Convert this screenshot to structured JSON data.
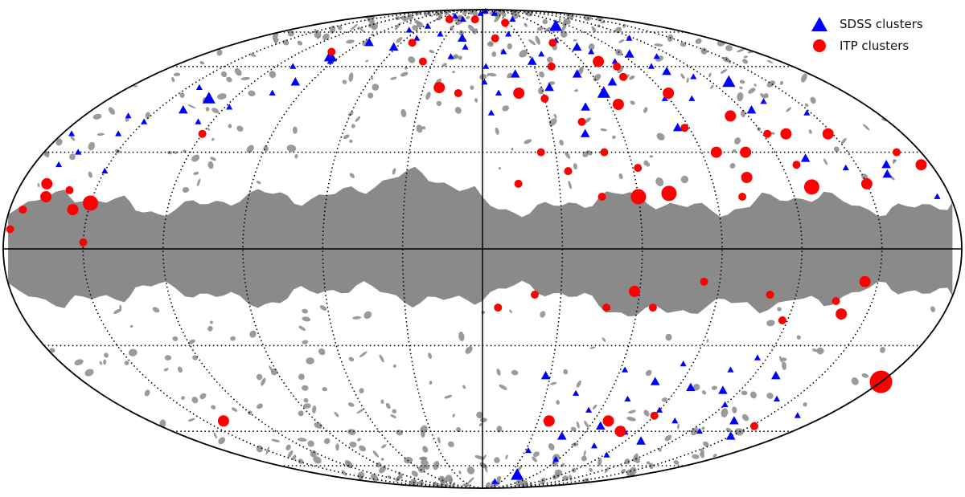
{
  "chart_data": {
    "type": "scatter",
    "projection": "mollweide",
    "coordinates": "galactic",
    "grid": true,
    "legend_position": "top-right",
    "colors": {
      "mask": "#8a8a8a",
      "background": "#ffffff",
      "sdss": "#0000ff",
      "itp": "#ff0000"
    },
    "series": [
      {
        "name": "SDSS clusters",
        "marker": "triangle",
        "color": "#0000ff",
        "points": [
          {
            "l": -162,
            "b": 26,
            "s": 2
          },
          {
            "l": -160,
            "b": 23,
            "s": 2
          },
          {
            "l": -175,
            "b": 16,
            "s": 1
          },
          {
            "l": -148,
            "b": 43,
            "s": 1
          },
          {
            "l": -145,
            "b": 25,
            "s": 1
          },
          {
            "l": -134,
            "b": 47,
            "s": 1
          },
          {
            "l": -131,
            "b": 28,
            "s": 2
          },
          {
            "l": -129,
            "b": 54,
            "s": 3
          },
          {
            "l": -124,
            "b": 44,
            "s": 2
          },
          {
            "l": -116,
            "b": 72,
            "s": 1
          },
          {
            "l": -114,
            "b": 56,
            "s": 1
          },
          {
            "l": -110,
            "b": 64,
            "s": 1
          },
          {
            "l": -103,
            "b": 58,
            "s": 2
          },
          {
            "l": -101,
            "b": 48,
            "s": 1
          },
          {
            "l": -98,
            "b": 60,
            "s": 1
          },
          {
            "l": -95,
            "b": 65,
            "s": 2
          },
          {
            "l": -88,
            "b": 48,
            "s": 1
          },
          {
            "l": -85,
            "b": 38,
            "s": 2
          },
          {
            "l": -80,
            "b": 62,
            "s": 1
          },
          {
            "l": -75,
            "b": 78,
            "s": 3
          },
          {
            "l": -72,
            "b": 66,
            "s": 1
          },
          {
            "l": -68,
            "b": 54,
            "s": 2
          },
          {
            "l": -66,
            "b": 68,
            "s": 2
          },
          {
            "l": -60,
            "b": 50,
            "s": 3
          },
          {
            "l": -56,
            "b": 71,
            "s": 1
          },
          {
            "l": -52,
            "b": 57,
            "s": 2
          },
          {
            "l": -48,
            "b": 45,
            "s": 2
          },
          {
            "l": -44,
            "b": 36,
            "s": 2
          },
          {
            "l": -40,
            "b": 82,
            "s": 1
          },
          {
            "l": -38,
            "b": 65,
            "s": 1
          },
          {
            "l": -34,
            "b": 52,
            "s": 2
          },
          {
            "l": -30,
            "b": 62,
            "s": 2
          },
          {
            "l": -25,
            "b": 86,
            "s": 1
          },
          {
            "l": -22,
            "b": 74,
            "s": 1
          },
          {
            "l": -18,
            "b": 57,
            "s": 2
          },
          {
            "l": -14,
            "b": 66,
            "s": 1
          },
          {
            "l": -10,
            "b": 88,
            "s": 1
          },
          {
            "l": -8,
            "b": 50,
            "s": 1
          },
          {
            "l": -4,
            "b": 43,
            "s": 1
          },
          {
            "l": -2,
            "b": 60,
            "s": 1
          },
          {
            "l": -1,
            "b": 54,
            "s": 1
          },
          {
            "l": 4,
            "b": 86,
            "s": 1
          },
          {
            "l": 12,
            "b": 68,
            "s": 1
          },
          {
            "l": 16,
            "b": 72,
            "s": 2
          },
          {
            "l": 20,
            "b": 64,
            "s": 1
          },
          {
            "l": 26,
            "b": 82,
            "s": 1
          },
          {
            "l": 36,
            "b": 74,
            "s": 1
          },
          {
            "l": 44,
            "b": 84,
            "s": 1
          },
          {
            "l": 52,
            "b": 72,
            "s": 1
          },
          {
            "l": 56,
            "b": 78,
            "s": 1
          },
          {
            "l": 62,
            "b": 68,
            "s": 2
          },
          {
            "l": 68,
            "b": 76,
            "s": 1
          },
          {
            "l": 84,
            "b": 70,
            "s": 2
          },
          {
            "l": 92,
            "b": 62,
            "s": 1
          },
          {
            "l": 96,
            "b": 64,
            "s": 3
          },
          {
            "l": 98,
            "b": 54,
            "s": 2
          },
          {
            "l": 104,
            "b": 50,
            "s": 1
          },
          {
            "l": 110,
            "b": 60,
            "s": 1
          },
          {
            "l": 118,
            "b": 45,
            "s": 1
          },
          {
            "l": 126,
            "b": 40,
            "s": 1
          },
          {
            "l": 132,
            "b": 48,
            "s": 3
          },
          {
            "l": 138,
            "b": 44,
            "s": 2
          },
          {
            "l": 144,
            "b": 52,
            "s": 1
          },
          {
            "l": 150,
            "b": 40,
            "s": 1
          },
          {
            "l": 156,
            "b": 36,
            "s": 1
          },
          {
            "l": 160,
            "b": 42,
            "s": 1
          },
          {
            "l": 166,
            "b": 30,
            "s": 1
          },
          {
            "l": 170,
            "b": 26,
            "s": 1
          },
          {
            "l": 176,
            "b": 36,
            "s": 1
          },
          {
            "l": 150,
            "b": 24,
            "s": 1
          },
          {
            "l": -165,
            "b": -54,
            "s": 1
          },
          {
            "l": -150,
            "b": -62,
            "s": 2
          },
          {
            "l": -142,
            "b": -48,
            "s": 1
          },
          {
            "l": -136,
            "b": -56,
            "s": 2
          },
          {
            "l": -130,
            "b": -40,
            "s": 2
          },
          {
            "l": -126,
            "b": -60,
            "s": 1
          },
          {
            "l": -120,
            "b": -50,
            "s": 1
          },
          {
            "l": -116,
            "b": -34,
            "s": 1
          },
          {
            "l": -112,
            "b": -45,
            "s": 2
          },
          {
            "l": -108,
            "b": -38,
            "s": 1
          },
          {
            "l": -104,
            "b": -56,
            "s": 1
          },
          {
            "l": -100,
            "b": -64,
            "s": 2
          },
          {
            "l": -96,
            "b": -44,
            "s": 2
          },
          {
            "l": -92,
            "b": -70,
            "s": 1
          },
          {
            "l": -90,
            "b": -52,
            "s": 1
          },
          {
            "l": -86,
            "b": -36,
            "s": 1
          },
          {
            "l": -82,
            "b": -60,
            "s": 2
          },
          {
            "l": -78,
            "b": -42,
            "s": 2
          },
          {
            "l": -74,
            "b": -66,
            "s": 1
          },
          {
            "l": -70,
            "b": -48,
            "s": 1
          },
          {
            "l": -66,
            "b": -58,
            "s": 2
          },
          {
            "l": -62,
            "b": -38,
            "s": 1
          },
          {
            "l": -58,
            "b": -72,
            "s": 1
          },
          {
            "l": -54,
            "b": -52,
            "s": 1
          },
          {
            "l": -48,
            "b": -62,
            "s": 2
          },
          {
            "l": -44,
            "b": -46,
            "s": 1
          },
          {
            "l": -40,
            "b": -80,
            "s": 3
          },
          {
            "l": -36,
            "b": -56,
            "s": 2
          },
          {
            "l": -32,
            "b": -68,
            "s": 1
          },
          {
            "l": -28,
            "b": -40,
            "s": 2
          },
          {
            "l": -20,
            "b": -84,
            "s": 1
          }
        ]
      },
      {
        "name": "ITP clusters",
        "marker": "circle",
        "color": "#ff0000",
        "points": [
          {
            "l": -176,
            "b": 26,
            "s": 2
          },
          {
            "l": -170,
            "b": 30,
            "s": 1
          },
          {
            "l": -152,
            "b": -58,
            "s": 1
          },
          {
            "l": -150,
            "b": 20,
            "s": 2
          },
          {
            "l": -148,
            "b": 36,
            "s": 2
          },
          {
            "l": -145,
            "b": -10,
            "s": 2
          },
          {
            "l": -140,
            "b": -20,
            "s": 2
          },
          {
            "l": -136,
            "b": -16,
            "s": 1
          },
          {
            "l": -130,
            "b": 36,
            "s": 2
          },
          {
            "l": -128,
            "b": 19,
            "s": 3
          },
          {
            "l": -126,
            "b": 26,
            "s": 1
          },
          {
            "l": -122,
            "b": 36,
            "s": 1
          },
          {
            "l": -118,
            "b": -22,
            "s": 1
          },
          {
            "l": -112,
            "b": 42,
            "s": 2
          },
          {
            "l": -110,
            "b": -14,
            "s": 1
          },
          {
            "l": -108,
            "b": 30,
            "s": 2
          },
          {
            "l": -104,
            "b": 22,
            "s": 2
          },
          {
            "l": -100,
            "b": 16,
            "s": 1
          },
          {
            "l": -96,
            "b": 30,
            "s": 2
          },
          {
            "l": -92,
            "b": 50,
            "s": 2
          },
          {
            "l": -90,
            "b": -54,
            "s": 1
          },
          {
            "l": -88,
            "b": 38,
            "s": 1
          },
          {
            "l": -84,
            "b": -10,
            "s": 1
          },
          {
            "l": -80,
            "b": -60,
            "s": 2
          },
          {
            "l": -78,
            "b": 60,
            "s": 1
          },
          {
            "l": -76,
            "b": 56,
            "s": 1
          },
          {
            "l": -72,
            "b": 17,
            "s": 3
          },
          {
            "l": -70,
            "b": 62,
            "s": 2
          },
          {
            "l": -68,
            "b": -56,
            "s": 2
          },
          {
            "l": -66,
            "b": -18,
            "s": 1
          },
          {
            "l": -64,
            "b": 46,
            "s": 2
          },
          {
            "l": -62,
            "b": 25,
            "s": 1
          },
          {
            "l": -60,
            "b": 16,
            "s": 3
          },
          {
            "l": -58,
            "b": -13,
            "s": 2
          },
          {
            "l": -52,
            "b": 70,
            "s": 1
          },
          {
            "l": -50,
            "b": 30,
            "s": 1
          },
          {
            "l": -48,
            "b": -18,
            "s": 1
          },
          {
            "l": -46,
            "b": 16,
            "s": 1
          },
          {
            "l": -44,
            "b": 40,
            "s": 1
          },
          {
            "l": -40,
            "b": 60,
            "s": 1
          },
          {
            "l": -36,
            "b": -56,
            "s": 2
          },
          {
            "l": -34,
            "b": 24,
            "s": 1
          },
          {
            "l": -30,
            "b": 48,
            "s": 1
          },
          {
            "l": -26,
            "b": 80,
            "s": 1
          },
          {
            "l": -24,
            "b": 30,
            "s": 1
          },
          {
            "l": -20,
            "b": -14,
            "s": 1
          },
          {
            "l": -18,
            "b": 50,
            "s": 2
          },
          {
            "l": -14,
            "b": 20,
            "s": 1
          },
          {
            "l": -10,
            "b": 72,
            "s": 1
          },
          {
            "l": -6,
            "b": -18,
            "s": 1
          },
          {
            "l": 10,
            "b": 82,
            "s": 1
          },
          {
            "l": 12,
            "b": 50,
            "s": 1
          },
          {
            "l": 22,
            "b": 52,
            "s": 2
          },
          {
            "l": 36,
            "b": 62,
            "s": 1
          },
          {
            "l": 44,
            "b": 82,
            "s": 1
          },
          {
            "l": 52,
            "b": 70,
            "s": 1
          },
          {
            "l": 100,
            "b": 66,
            "s": 1
          },
          {
            "l": 120,
            "b": 36,
            "s": 1
          },
          {
            "l": 150,
            "b": 14,
            "s": 3
          },
          {
            "l": 156,
            "b": 12,
            "s": 2
          },
          {
            "l": 160,
            "b": 18,
            "s": 1
          },
          {
            "l": 168,
            "b": 16,
            "s": 2
          },
          {
            "l": 170,
            "b": 20,
            "s": 2
          },
          {
            "l": 175,
            "b": 12,
            "s": 1
          },
          {
            "l": 178,
            "b": 6,
            "s": 1
          },
          {
            "l": 150,
            "b": 2,
            "s": 1
          },
          {
            "l": 140,
            "b": -56,
            "s": 2
          },
          {
            "l": -180,
            "b": -42,
            "s": 4
          }
        ]
      }
    ]
  },
  "legend": {
    "items": [
      {
        "label": "SDSS clusters",
        "marker": "triangle",
        "color": "#0000ff"
      },
      {
        "label": "ITP clusters",
        "marker": "circle",
        "color": "#ff0000"
      }
    ]
  }
}
